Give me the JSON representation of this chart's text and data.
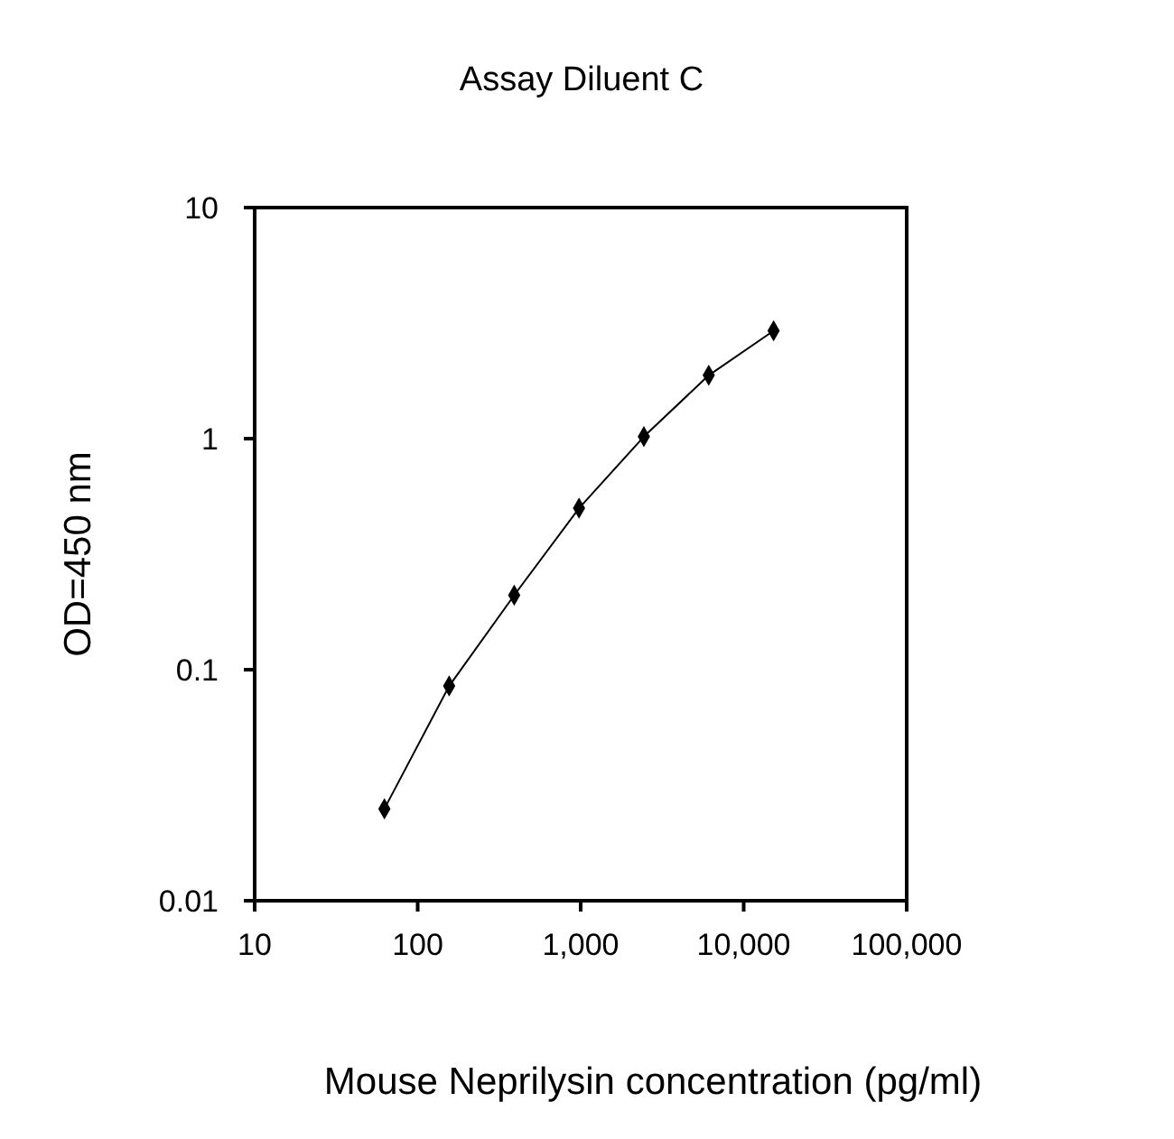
{
  "chart_data": {
    "type": "line",
    "title": "Assay Diluent C",
    "xlabel": "Mouse Neprilysin concentration (pg/ml)",
    "ylabel": "OD=450 nm",
    "log": "xy",
    "marker": "diamond",
    "line_style": "solid",
    "xlim": [
      10,
      100000
    ],
    "xticks": [
      10,
      100,
      {
        "value": 1000,
        "label": "1,000"
      },
      {
        "value": 10000,
        "label": "10,000"
      },
      {
        "value": 100000,
        "label": "100,000"
      }
    ],
    "ylim": [
      0.01,
      10
    ],
    "yticks": [
      0.01,
      0.1,
      1,
      10
    ],
    "series": [
      {
        "color": "#000000",
        "x": [
          62.5,
          156,
          391,
          977,
          2441,
          6104,
          15259
        ],
        "values": [
          0.025,
          0.085,
          0.21,
          0.5,
          1.02,
          1.88,
          2.93
        ]
      }
    ]
  }
}
